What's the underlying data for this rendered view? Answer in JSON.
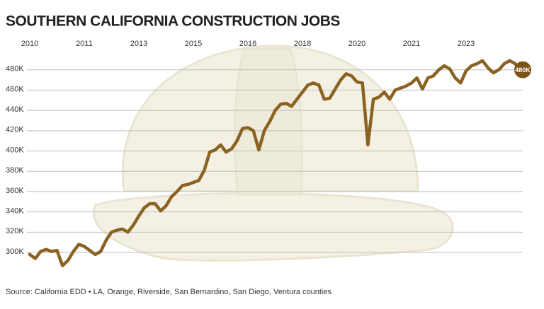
{
  "chart_data": {
    "type": "line",
    "title": "SOUTHERN CALIFORNIA CONSTRUCTION JOBS",
    "source": "Source: California EDD • LA, Orange, Riverside, San Bernardino, San Diego, Ventura counties",
    "categories": [
      "2010",
      null,
      null,
      null,
      null,
      null,
      null,
      null,
      null,
      null,
      "2011",
      null,
      null,
      null,
      null,
      null,
      null,
      null,
      null,
      null,
      "2013",
      null,
      null,
      null,
      null,
      null,
      null,
      null,
      null,
      null,
      "2015",
      null,
      null,
      null,
      null,
      null,
      null,
      null,
      null,
      null,
      "2016",
      null,
      null,
      null,
      null,
      null,
      null,
      null,
      null,
      null,
      "2018",
      null,
      null,
      null,
      null,
      null,
      null,
      null,
      null,
      null,
      "2020",
      null,
      null,
      null,
      null,
      null,
      null,
      null,
      null,
      null,
      "2021",
      null,
      null,
      null,
      null,
      null,
      null,
      null,
      null,
      null,
      "2023",
      null,
      null,
      null,
      null,
      null,
      null,
      null,
      null,
      null,
      null
    ],
    "color": "#8a6222",
    "values": [
      298,
      294,
      301,
      303,
      301,
      302,
      287,
      292,
      301,
      308,
      306,
      302,
      298,
      301,
      312,
      320,
      322,
      323,
      320,
      327,
      336,
      344,
      348,
      348,
      341,
      346,
      355,
      360,
      366,
      367,
      369,
      371,
      381,
      399,
      401,
      406,
      399,
      402,
      410,
      422,
      423,
      420,
      401,
      420,
      429,
      440,
      446,
      447,
      444,
      451,
      458,
      465,
      467,
      465,
      451,
      452,
      461,
      470,
      476,
      474,
      468,
      467,
      406,
      451,
      453,
      458,
      451,
      460,
      462,
      464,
      467,
      472,
      461,
      472,
      474,
      480,
      484,
      481,
      472,
      467,
      479,
      484,
      486,
      489,
      482,
      477,
      480,
      486,
      489,
      486,
      480
    ],
    "value_labels": [
      null,
      null,
      null,
      null,
      null,
      null,
      null,
      null,
      null,
      null,
      null,
      null,
      null,
      null,
      null,
      null,
      null,
      null,
      null,
      null,
      null,
      null,
      null,
      null,
      null,
      null,
      null,
      null,
      null,
      null,
      null,
      null,
      null,
      null,
      null,
      null,
      null,
      null,
      null,
      null,
      null,
      null,
      null,
      null,
      null,
      null,
      null,
      null,
      null,
      null,
      null,
      null,
      null,
      null,
      null,
      null,
      null,
      null,
      null,
      null,
      null,
      null,
      null,
      null,
      null,
      null,
      null,
      null,
      null,
      null,
      null,
      null,
      null,
      null,
      null,
      null,
      null,
      null,
      null,
      null,
      null,
      null,
      null,
      null,
      null,
      null,
      null,
      null,
      null,
      null,
      "480K"
    ],
    "ylim": [
      284,
      500
    ],
    "yticks": [
      {
        "value": 300,
        "label": "300K"
      },
      {
        "value": 320,
        "label": "320K"
      },
      {
        "value": 340,
        "label": "340K"
      },
      {
        "value": 360,
        "label": "360K"
      },
      {
        "value": 380,
        "label": "380K"
      },
      {
        "value": 400,
        "label": "400K"
      },
      {
        "value": 420,
        "label": "420K"
      },
      {
        "value": 440,
        "label": "440K"
      },
      {
        "value": 460,
        "label": "460K"
      },
      {
        "value": 480,
        "label": "480K"
      }
    ],
    "grid": true
  }
}
